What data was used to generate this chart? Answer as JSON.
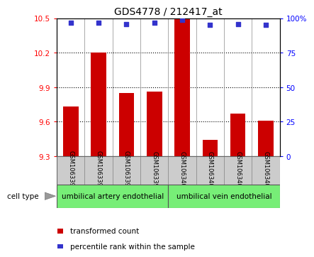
{
  "title": "GDS4778 / 212417_at",
  "samples": [
    "GSM1063396",
    "GSM1063397",
    "GSM1063398",
    "GSM1063399",
    "GSM1063405",
    "GSM1063406",
    "GSM1063407",
    "GSM1063408"
  ],
  "bar_values": [
    9.73,
    10.2,
    9.85,
    9.86,
    10.49,
    9.44,
    9.67,
    9.61
  ],
  "percentile_values": [
    97,
    97,
    96,
    97,
    99,
    95,
    96,
    95
  ],
  "ylim_left": [
    9.3,
    10.5
  ],
  "yticks_left": [
    9.3,
    9.6,
    9.9,
    10.2,
    10.5
  ],
  "yticks_right": [
    0,
    25,
    50,
    75,
    100
  ],
  "ylim_right": [
    0,
    100
  ],
  "bar_color": "#cc0000",
  "dot_color": "#3333cc",
  "group1_label": "umbilical artery endothelial",
  "group2_label": "umbilical vein endothelial",
  "group1_indices": [
    0,
    1,
    2,
    3
  ],
  "group2_indices": [
    4,
    5,
    6,
    7
  ],
  "cell_type_label": "cell type",
  "legend_bar_label": "transformed count",
  "legend_dot_label": "percentile rank within the sample",
  "background_color": "#ffffff",
  "plot_bg_color": "#ffffff",
  "group_bg_color": "#77ee77",
  "sample_box_color": "#cccccc",
  "grid_color": "#000000",
  "separator_color": "#888888",
  "dot_size": 18
}
